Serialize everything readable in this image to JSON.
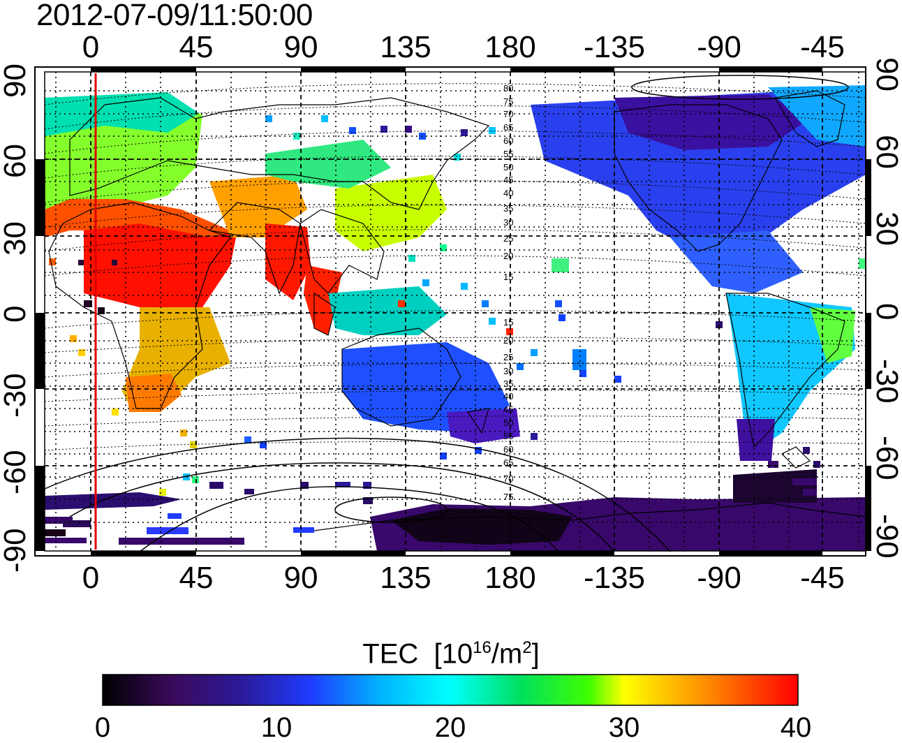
{
  "timestamp": "2012-07-09/11:50:00",
  "map": {
    "lon_top_labels": [
      "0",
      "45",
      "90",
      "135",
      "180",
      "-135",
      "-90",
      "-45"
    ],
    "lon_bottom_labels": [
      "0",
      "45",
      "90",
      "135",
      "180",
      "-135",
      "-90",
      "-45"
    ],
    "lat_left_labels": [
      "90",
      "60",
      "30",
      "0",
      "-30",
      "-60",
      "-90"
    ],
    "lat_right_labels": [
      "90",
      "60",
      "30",
      "0",
      "-30",
      "-60",
      "-90"
    ],
    "lon_range": [
      -20,
      335
    ],
    "lat_range": [
      -90,
      90
    ],
    "projection": "equirectangular",
    "grid": "dotted",
    "terminator_longitude": 2,
    "magnetic_contour_labels": [
      "80",
      "75",
      "70",
      "65",
      "60",
      "55",
      "50",
      "45",
      "40",
      "35",
      "30",
      "25",
      "20",
      "15",
      "15",
      "20",
      "25",
      "30",
      "35",
      "40",
      "45",
      "50",
      "55",
      "60",
      "65",
      "70",
      "75"
    ],
    "colors": {
      "terminator": "#e00000",
      "coastline": "#000000"
    }
  },
  "colorbar": {
    "title": "TEC",
    "unit_base": "10",
    "unit_exp": "16",
    "unit_rest": "/m",
    "unit_exp2": "2",
    "ticks": [
      "0",
      "10",
      "20",
      "30",
      "40"
    ],
    "range": [
      0,
      40
    ],
    "stops": [
      "#000000",
      "#3a0a5a",
      "#2a1a9a",
      "#1f3cff",
      "#00b4ff",
      "#00ffff",
      "#00e060",
      "#40ff00",
      "#ffff00",
      "#ff8000",
      "#ff0000"
    ]
  }
}
